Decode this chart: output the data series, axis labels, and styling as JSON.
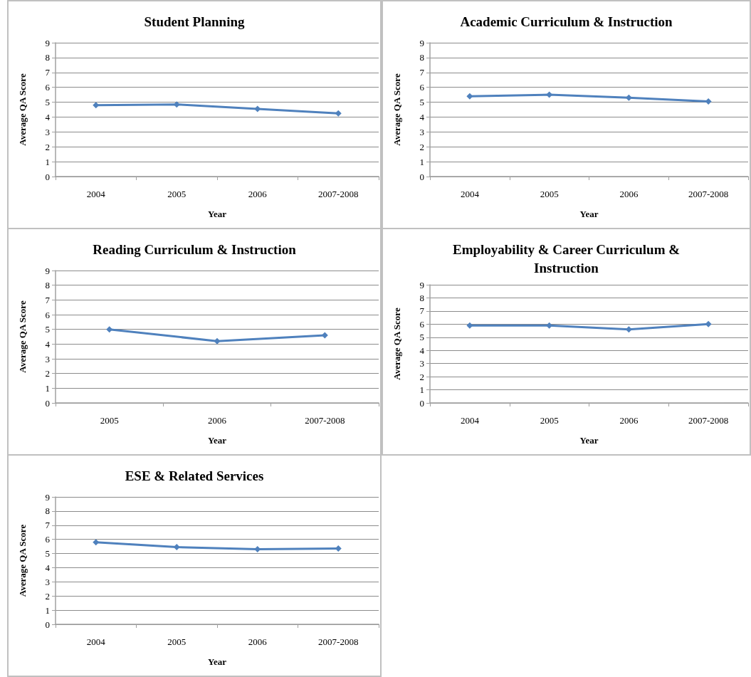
{
  "chart_data": [
    {
      "type": "line",
      "title": "Student Planning",
      "xlabel": "Year",
      "ylabel": "Average QA Score",
      "categories": [
        "2004",
        "2005",
        "2006",
        "2007-2008"
      ],
      "values": [
        4.8,
        4.85,
        4.55,
        4.25
      ],
      "color": "#4f81bd",
      "ylim": [
        0,
        9
      ],
      "yticks": [
        0,
        1,
        2,
        3,
        4,
        5,
        6,
        7,
        8,
        9
      ],
      "grid": "y",
      "marker": "diamond"
    },
    {
      "type": "line",
      "title": "Academic Curriculum & Instruction",
      "xlabel": "Year",
      "ylabel": "Average QA Score",
      "categories": [
        "2004",
        "2005",
        "2006",
        "2007-2008"
      ],
      "values": [
        5.4,
        5.5,
        5.3,
        5.05
      ],
      "color": "#4f81bd",
      "ylim": [
        0,
        9
      ],
      "yticks": [
        0,
        1,
        2,
        3,
        4,
        5,
        6,
        7,
        8,
        9
      ],
      "grid": "y",
      "marker": "diamond"
    },
    {
      "type": "line",
      "title": "Reading Curriculum & Instruction",
      "xlabel": "Year",
      "ylabel": "Average QA Score",
      "categories": [
        "2005",
        "2006",
        "2007-2008"
      ],
      "values": [
        5.0,
        4.2,
        4.6
      ],
      "color": "#4f81bd",
      "ylim": [
        0,
        9
      ],
      "yticks": [
        0,
        1,
        2,
        3,
        4,
        5,
        6,
        7,
        8,
        9
      ],
      "grid": "y",
      "marker": "diamond"
    },
    {
      "type": "line",
      "title": "Employability & Career Curriculum & Instruction",
      "xlabel": "Year",
      "ylabel": "Average QA Score",
      "categories": [
        "2004",
        "2005",
        "2006",
        "2007-2008"
      ],
      "values": [
        5.9,
        5.9,
        5.6,
        6.0
      ],
      "color": "#4f81bd",
      "ylim": [
        0,
        9
      ],
      "yticks": [
        0,
        1,
        2,
        3,
        4,
        5,
        6,
        7,
        8,
        9
      ],
      "grid": "y",
      "marker": "diamond"
    },
    {
      "type": "line",
      "title": "ESE & Related Services",
      "xlabel": "Year",
      "ylabel": "Average QA Score",
      "categories": [
        "2004",
        "2005",
        "2006",
        "2007-2008"
      ],
      "values": [
        5.8,
        5.45,
        5.3,
        5.35
      ],
      "color": "#4f81bd",
      "ylim": [
        0,
        9
      ],
      "yticks": [
        0,
        1,
        2,
        3,
        4,
        5,
        6,
        7,
        8,
        9
      ],
      "grid": "y",
      "marker": "diamond"
    }
  ]
}
